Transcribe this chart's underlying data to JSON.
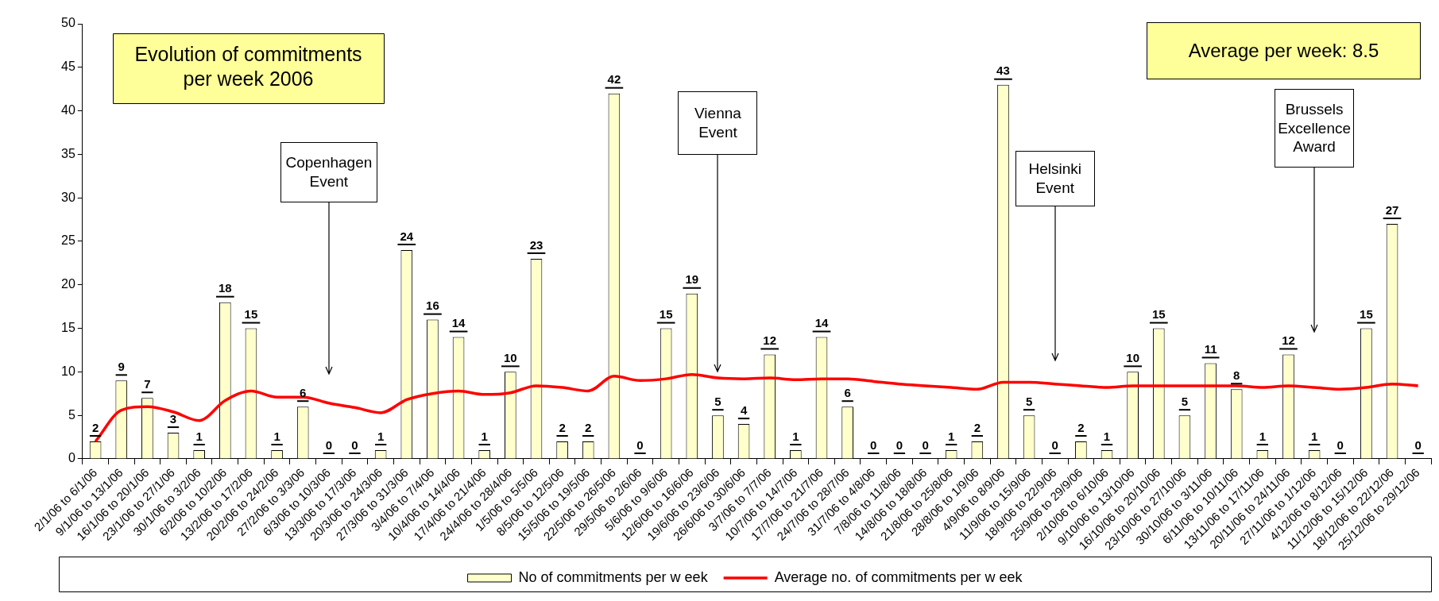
{
  "chart_data": {
    "type": "bar",
    "title": "Evolution of commitments per week 2006",
    "categories": [
      "2/1/06 to 6/1/06",
      "9/1/06 to 13/1/06",
      "16/1/06 to 20/1/06",
      "23/1/06 to 27/1/06",
      "30/1/06 to 3/2/06",
      "6/2/06 to 10/2/06",
      "13/2/06 to 17/2/06",
      "20/2/06 to 24/2/06",
      "27/2/06 to 3/3/06",
      "6/3/06 to 10/3/06",
      "13/3/06 to 17/3/06",
      "20/3/06 to 24/3/06",
      "27/3/06 to 31/3/06",
      "3/4/06 to 7/4/06",
      "10/4/06 to 14/4/06",
      "17/4/06 to 21/4/06",
      "24/4/06 to 28/4/06",
      "1/5/06 to 5/5/06",
      "8/5/06 to 12/5/06",
      "15/5/06 to 19/5/06",
      "22/5/06 to 26/5/06",
      "29/5/06 to 2/6/06",
      "5/6/06 to 9/6/06",
      "12/6/06 to 16/6/06",
      "19/6/06 to 23/6/06",
      "26/6/06 to 30/6/06",
      "3/7/06 to 7/7/06",
      "10/7/06 to 14/7/06",
      "17/7/06 to 21/7/06",
      "24/7/06 to 28/7/06",
      "31/7/06 to 4/8/06",
      "7/8/06 to 11/8/06",
      "14/8/06 to 18/8/06",
      "21/8/06 to 25/8/06",
      "28/8/06 to 1/9/06",
      "4/9/06 to 8/9/06",
      "11/9/06 to 15/9/06",
      "18/9/06 to 22/9/06",
      "25/9/06 to 29/9/06",
      "2/10/06 to 6/10/06",
      "9/10/06 to 13/10/06",
      "16/10/06 to 20/10/06",
      "23/10/06 to 27/10/06",
      "30/10/06 to 3/11/06",
      "6/11/06 to 10/11/06",
      "13/11/06 to 17/11/06",
      "20/11/06 to 24/11/06",
      "27/11/06 to 1/12/06",
      "4/12/06 to 8/12/06",
      "11/12/06 to 15/12/06",
      "18/12/06 to 22/12/06",
      "25/12/06 to 29/12/06"
    ],
    "series": [
      {
        "name": "No of commitments per w eek",
        "color": "#ffffcc",
        "values": [
          2,
          9,
          7,
          3,
          1,
          18,
          15,
          1,
          6,
          0,
          0,
          1,
          24,
          16,
          14,
          1,
          10,
          23,
          2,
          2,
          42,
          0,
          15,
          19,
          5,
          4,
          12,
          1,
          14,
          6,
          0,
          0,
          0,
          1,
          2,
          43,
          5,
          0,
          2,
          1,
          10,
          15,
          5,
          11,
          8,
          1,
          12,
          1,
          0,
          15,
          27,
          0
        ],
        "value_labels": [
          "2",
          "9",
          "7",
          "3",
          "1",
          "18",
          "15",
          "1",
          "6",
          "0",
          "0",
          "1",
          "24",
          "16",
          "14",
          "1",
          "10",
          "23",
          "2",
          "2",
          "42",
          "0",
          "15",
          "19",
          "5",
          "4",
          "12",
          "1",
          "14",
          "6",
          "0",
          "0",
          "0",
          "1",
          "2",
          "43",
          "5",
          "0",
          "2",
          "1",
          "10",
          "15",
          "5",
          "11",
          "8",
          "1",
          "12",
          "1",
          "0",
          "15",
          "27",
          "0"
        ]
      },
      {
        "name": "Average no. of commitments per w eek",
        "type": "line",
        "color": "#ff0000",
        "values": [
          2,
          5.6,
          6,
          5.4,
          4.4,
          6.7,
          7.8,
          7.1,
          7.1,
          6.4,
          5.9,
          5.3,
          6.8,
          7.5,
          7.8,
          7.4,
          7.6,
          8.4,
          8.2,
          7.8,
          9.5,
          9,
          9.2,
          9.7,
          9.3,
          9.2,
          9.3,
          9.1,
          9.2,
          9.2,
          8.9,
          8.6,
          8.4,
          8.2,
          8,
          8.8,
          8.8,
          8.6,
          8.4,
          8.2,
          8.4,
          8.4,
          8.4,
          8.4,
          8.4,
          8.2,
          8.4,
          8.2,
          8,
          8.2,
          8.6,
          8.4
        ]
      }
    ],
    "ylim": [
      0,
      50
    ],
    "yticks": [
      0,
      5,
      10,
      15,
      20,
      25,
      30,
      35,
      40,
      45,
      50
    ],
    "grid": false,
    "legend": "bottom",
    "marker": "none",
    "subtitle": "Average per week: 8.5",
    "annotations": [
      "Copenhagen Event",
      "Vienna Event",
      "Helsinki Event",
      "Brussels Excellence Award"
    ]
  }
}
